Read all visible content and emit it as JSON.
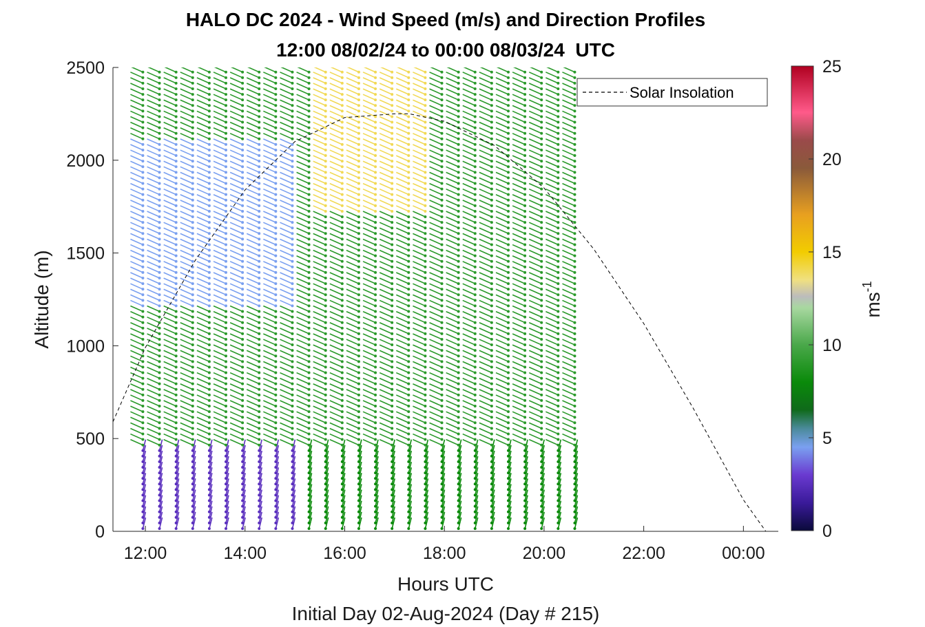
{
  "chart_data": {
    "type": "vector-field",
    "title": "HALO DC 2024 - Wind Speed (m/s) and Direction Profiles",
    "subtitle": "12:00 08/02/24 to 00:00 08/03/24  UTC",
    "xlabel": "Hours UTC",
    "x_caption": "Initial Day 02-Aug-2024 (Day # 215)",
    "ylabel": "Altitude (m)",
    "xlim": [
      11.35,
      24.7
    ],
    "ylim": [
      0,
      2500
    ],
    "x_ticks": [
      {
        "value": 12,
        "label": "12:00"
      },
      {
        "value": 14,
        "label": "14:00"
      },
      {
        "value": 16,
        "label": "16:00"
      },
      {
        "value": 18,
        "label": "18:00"
      },
      {
        "value": 20,
        "label": "20:00"
      },
      {
        "value": 22,
        "label": "22:00"
      },
      {
        "value": 24,
        "label": "00:00"
      }
    ],
    "y_ticks": [
      0,
      500,
      1000,
      1500,
      2000,
      2500
    ],
    "colorbar": {
      "label": "ms",
      "label_exponent": "-1",
      "range": [
        0,
        25
      ],
      "ticks": [
        0,
        5,
        10,
        15,
        20,
        25
      ],
      "stops": [
        {
          "value": 0,
          "color": "#0a0a3a"
        },
        {
          "value": 1.5,
          "color": "#3a1a9a"
        },
        {
          "value": 3,
          "color": "#6a3ad0"
        },
        {
          "value": 4.5,
          "color": "#7aa0f0"
        },
        {
          "value": 5.5,
          "color": "#4a8a9a"
        },
        {
          "value": 6.5,
          "color": "#0f6a1a"
        },
        {
          "value": 8,
          "color": "#0a8a0a"
        },
        {
          "value": 10,
          "color": "#4aa84a"
        },
        {
          "value": 12,
          "color": "#a8d8a0"
        },
        {
          "value": 12.6,
          "color": "#bcbcbc"
        },
        {
          "value": 13.5,
          "color": "#f0e080"
        },
        {
          "value": 15,
          "color": "#f2cc00"
        },
        {
          "value": 17,
          "color": "#e8a020"
        },
        {
          "value": 19.5,
          "color": "#8a5a3a"
        },
        {
          "value": 21,
          "color": "#9a4a4a"
        },
        {
          "value": 22.5,
          "color": "#ff5a8a"
        },
        {
          "value": 25,
          "color": "#b00020"
        }
      ]
    },
    "legend": {
      "entries": [
        "Solar Insolation"
      ],
      "location": "top-right"
    },
    "solar_insolation": {
      "style": "dashed black",
      "x": [
        11.35,
        12.0,
        13.0,
        14.0,
        15.0,
        16.0,
        17.0,
        17.3,
        18.0,
        19.0,
        20.0,
        21.0,
        22.0,
        23.0,
        24.0,
        24.45,
        24.6
      ],
      "y": [
        590,
        990,
        1460,
        1840,
        2100,
        2230,
        2250,
        2250,
        2210,
        2080,
        1850,
        1520,
        1120,
        660,
        170,
        0,
        0
      ]
    },
    "wind_field": {
      "x_start": 11.95,
      "x_end": 20.8,
      "column_step": 0.3333,
      "altitude_step": 30,
      "speed_regimes": [
        {
          "x_range": [
            11.95,
            15.0
          ],
          "alt_range": [
            0,
            450
          ],
          "speed": 2.5
        },
        {
          "x_range": [
            11.95,
            15.0
          ],
          "alt_range": [
            1200,
            2100
          ],
          "speed": 4.5
        },
        {
          "x_range": [
            15.5,
            17.8
          ],
          "alt_range": [
            1700,
            2500
          ],
          "speed": 14
        },
        {
          "x_range": [
            11.95,
            20.8
          ],
          "alt_range": [
            450,
            2500
          ],
          "speed": 9
        }
      ]
    }
  }
}
